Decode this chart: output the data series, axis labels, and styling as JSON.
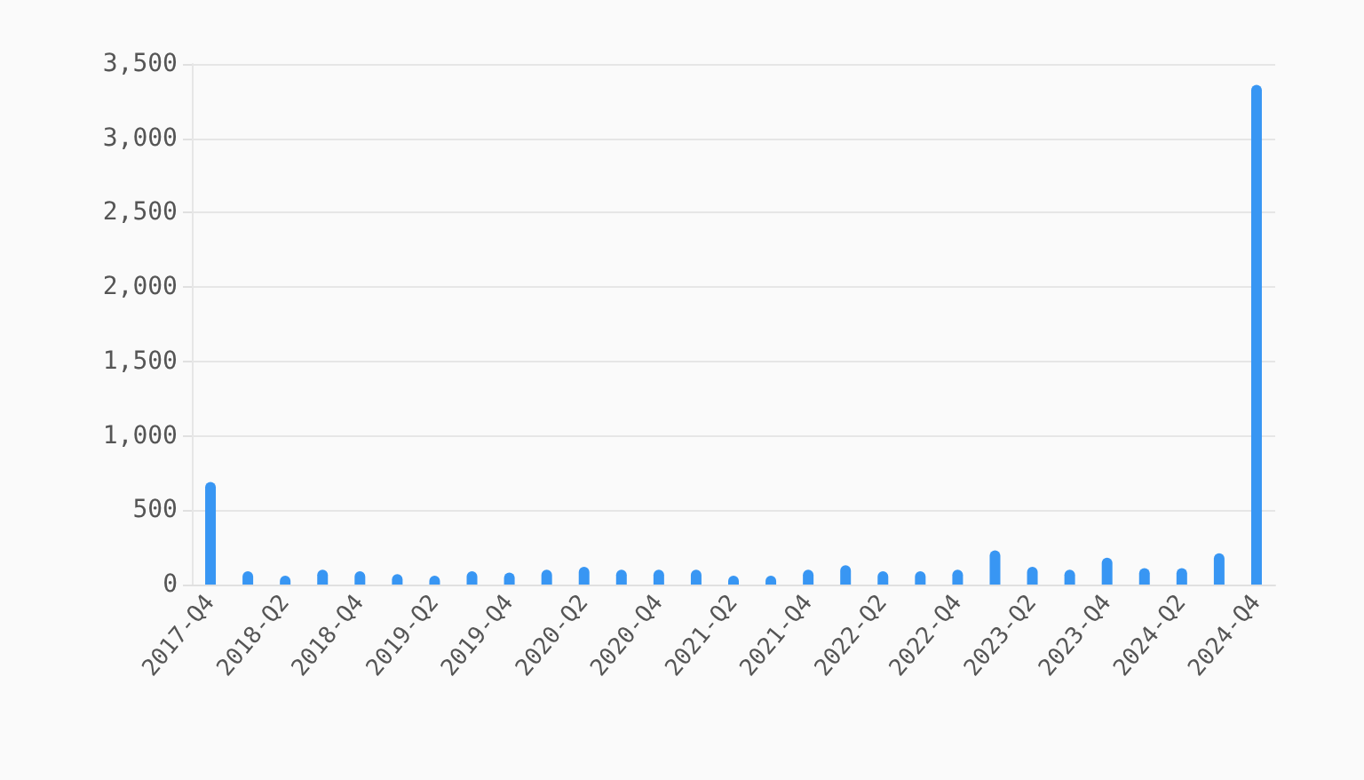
{
  "chart_data": {
    "type": "bar",
    "categories": [
      "2017-Q4",
      null,
      "2018-Q2",
      null,
      "2018-Q4",
      null,
      "2019-Q2",
      null,
      "2019-Q4",
      null,
      "2020-Q2",
      null,
      "2020-Q4",
      null,
      "2021-Q2",
      null,
      "2021-Q4",
      null,
      "2022-Q2",
      null,
      "2022-Q4",
      null,
      "2023-Q2",
      null,
      "2023-Q4",
      null,
      "2024-Q2",
      null,
      "2024-Q4"
    ],
    "values": [
      690,
      90,
      60,
      100,
      90,
      70,
      60,
      90,
      80,
      100,
      120,
      100,
      100,
      100,
      60,
      60,
      100,
      130,
      90,
      90,
      100,
      230,
      120,
      100,
      180,
      110,
      110,
      210,
      3360
    ],
    "color": "#3896f3",
    "ylim": [
      0,
      3500
    ],
    "yticks": [
      0,
      500,
      {
        "value": 1000,
        "label": "1,000"
      },
      {
        "value": 1500,
        "label": "1,500"
      },
      {
        "value": 2000,
        "label": "2,000"
      },
      {
        "value": 2500,
        "label": "2,500"
      },
      {
        "value": 3000,
        "label": "3,000"
      },
      {
        "value": 3500,
        "label": "3,500"
      }
    ],
    "grid": "y"
  }
}
